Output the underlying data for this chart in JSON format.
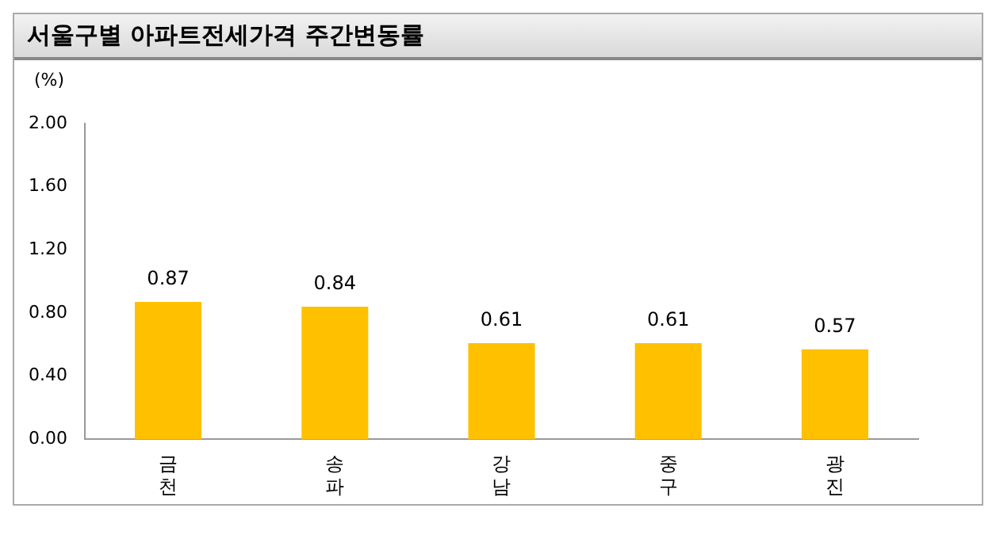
{
  "chart_data": {
    "type": "bar",
    "title": "서울구별 아파트전세가격 주간변동률",
    "ylabel": "(%)",
    "categories": [
      "금천",
      "송파",
      "강남",
      "중구",
      "광진"
    ],
    "values": [
      0.87,
      0.84,
      0.61,
      0.61,
      0.57
    ],
    "color": "#ffc000",
    "ylim": [
      0,
      2
    ],
    "yticks": [
      {
        "value": 0,
        "label": "0.00"
      },
      {
        "value": 0.4,
        "label": "0.40"
      },
      {
        "value": 0.8,
        "label": "0.80"
      },
      {
        "value": 1.2,
        "label": "1.20"
      },
      {
        "value": 1.6,
        "label": "1.60"
      },
      {
        "value": 2,
        "label": "2.00"
      }
    ],
    "grid": false,
    "data_labels": true,
    "legend": false
  }
}
